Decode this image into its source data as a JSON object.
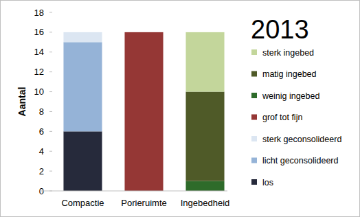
{
  "chart_data": {
    "type": "bar",
    "title": "2013",
    "y_label": "Aantal",
    "categories": [
      "Compactie",
      "Porieruimte",
      "Ingebedheid"
    ],
    "series": [
      {
        "name": "los",
        "color": "#262a3b",
        "values": [
          6,
          0,
          0
        ]
      },
      {
        "name": "licht geconsolideerd",
        "color": "#95b3d7",
        "values": [
          9,
          0,
          0
        ]
      },
      {
        "name": "sterk geconsolideerd",
        "color": "#dce6f2",
        "values": [
          1,
          0,
          0
        ]
      },
      {
        "name": "grof tot fijn",
        "color": "#953735",
        "values": [
          0,
          16,
          0
        ]
      },
      {
        "name": "weinig ingebed",
        "color": "#2e6b2a",
        "values": [
          0,
          0,
          1
        ]
      },
      {
        "name": "matig ingebed",
        "color": "#4f5a28",
        "values": [
          0,
          0,
          9
        ]
      },
      {
        "name": "sterk ingebed",
        "color": "#c3d69b",
        "values": [
          0,
          0,
          6
        ]
      }
    ],
    "stacked": true,
    "legend": "right",
    "grid": false,
    "ylim": [
      0,
      18
    ],
    "yticks": [
      0,
      2,
      4,
      6,
      8,
      10,
      12,
      14,
      16,
      18
    ]
  }
}
